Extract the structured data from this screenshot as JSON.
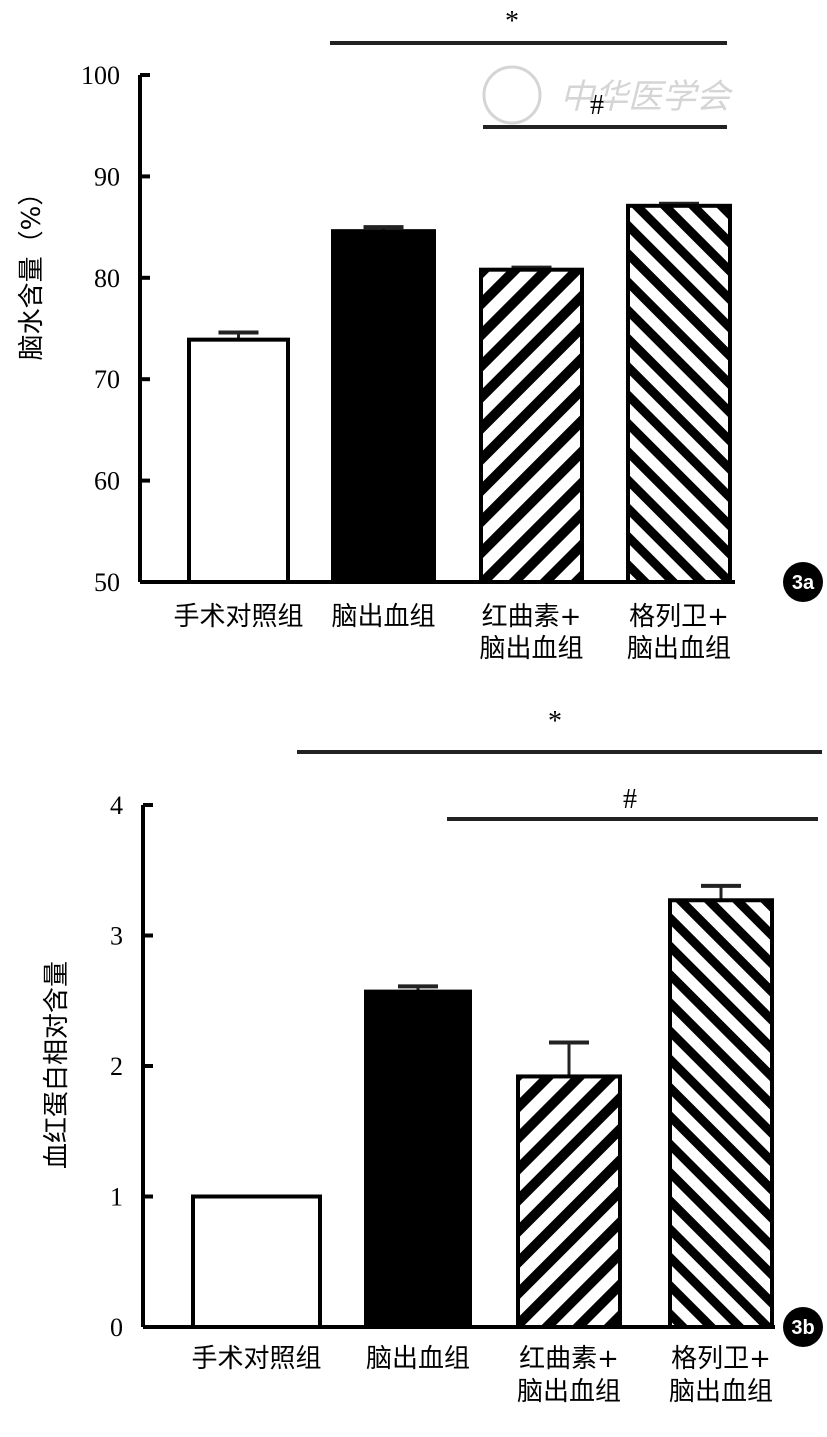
{
  "watermark": "中华医学会",
  "chart_data": [
    {
      "type": "bar",
      "panel_label": "3a",
      "ylabel": "脑水含量（%）",
      "ylim": [
        50,
        100
      ],
      "yticks": [
        "50",
        "60",
        "70",
        "80",
        "90",
        "100"
      ],
      "categories": [
        [
          "手术对照组"
        ],
        [
          "脑出血组"
        ],
        [
          "红曲素+",
          "脑出血组"
        ],
        [
          "格列卫+",
          "脑出血组"
        ]
      ],
      "values": [
        73.9,
        84.6,
        80.8,
        87.1
      ],
      "error_upper": [
        74.6,
        85.0,
        81.0,
        87.3
      ],
      "fills": [
        "white",
        "black",
        "hatch-up",
        "hatch-down"
      ],
      "significance": [
        {
          "label": "*",
          "from": 1,
          "to": 3
        },
        {
          "label": "#",
          "from": 2,
          "to": 3
        }
      ]
    },
    {
      "type": "bar",
      "panel_label": "3b",
      "ylabel": "血红蛋白相对含量",
      "ylim": [
        0,
        4
      ],
      "yticks": [
        "0",
        "1",
        "2",
        "3",
        "4"
      ],
      "categories": [
        [
          "手术对照组"
        ],
        [
          "脑出血组"
        ],
        [
          "红曲素+",
          "脑出血组"
        ],
        [
          "格列卫+",
          "脑出血组"
        ]
      ],
      "values": [
        1.0,
        2.57,
        1.92,
        3.27
      ],
      "error_upper": [
        1.0,
        2.61,
        2.18,
        3.38
      ],
      "fills": [
        "white",
        "black",
        "hatch-up",
        "hatch-down"
      ],
      "significance": [
        {
          "label": "*",
          "from": 1,
          "to": 3
        },
        {
          "label": "#",
          "from": 2,
          "to": 3
        }
      ]
    }
  ]
}
